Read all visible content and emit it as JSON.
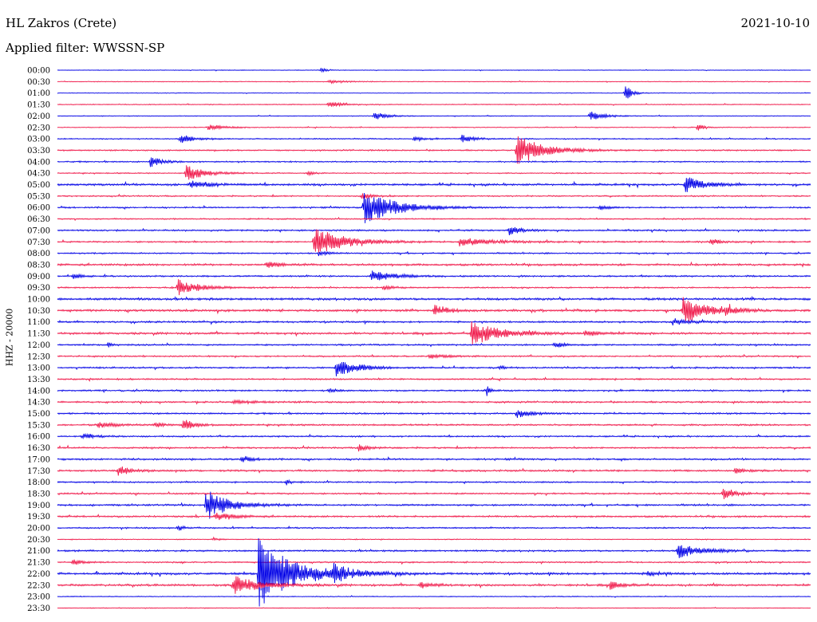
{
  "header": {
    "station": "HL Zakros (Crete)",
    "date": "2021-10-10",
    "filter": "Applied filter: WWSSN-SP"
  },
  "chart_data": {
    "type": "line",
    "title": "HL Zakros (Crete)",
    "subtitle": "Applied filter: WWSSN-SP",
    "ylabel": "HHZ - 20000",
    "xlabel": "",
    "grid": false,
    "colors": {
      "even": "#0000e6",
      "odd": "#f0194a"
    },
    "rows": [
      "00:00",
      "00:30",
      "01:00",
      "01:30",
      "02:00",
      "02:30",
      "03:00",
      "03:30",
      "04:00",
      "04:30",
      "05:00",
      "05:30",
      "06:00",
      "06:30",
      "07:00",
      "07:30",
      "08:00",
      "08:30",
      "09:00",
      "09:30",
      "10:00",
      "10:30",
      "11:00",
      "11:30",
      "12:00",
      "12:30",
      "13:00",
      "13:30",
      "14:00",
      "14:30",
      "15:00",
      "15:30",
      "16:00",
      "16:30",
      "17:00",
      "17:30",
      "18:00",
      "18:30",
      "19:00",
      "19:30",
      "20:00",
      "20:30",
      "21:00",
      "21:30",
      "22:00",
      "22:30",
      "23:00",
      "23:30"
    ],
    "noise": [
      0.4,
      0.5,
      0.4,
      0.6,
      0.5,
      0.6,
      0.8,
      1.0,
      0.9,
      0.8,
      1.4,
      0.9,
      1.0,
      0.9,
      1.1,
      1.1,
      1.0,
      1.4,
      1.1,
      1.0,
      1.6,
      1.5,
      1.2,
      1.4,
      1.1,
      1.0,
      1.1,
      1.1,
      1.1,
      1.2,
      1.1,
      1.2,
      1.0,
      1.1,
      1.2,
      1.3,
      1.0,
      1.1,
      1.2,
      1.2,
      1.0,
      0.6,
      1.2,
      1.0,
      1.5,
      1.4,
      0.6,
      0.5
    ],
    "events": [
      {
        "row": 0,
        "t": 10.5,
        "amp": 3,
        "dur": 0.4
      },
      {
        "row": 1,
        "t": 10.8,
        "amp": 2,
        "dur": 1
      },
      {
        "row": 2,
        "t": 22.6,
        "amp": 12,
        "dur": 0.4
      },
      {
        "row": 3,
        "t": 10.8,
        "amp": 4,
        "dur": 0.8
      },
      {
        "row": 4,
        "t": 12.6,
        "amp": 5,
        "dur": 0.8
      },
      {
        "row": 4,
        "t": 21.2,
        "amp": 6,
        "dur": 0.9
      },
      {
        "row": 5,
        "t": 6.0,
        "amp": 4,
        "dur": 1.0
      },
      {
        "row": 5,
        "t": 25.5,
        "amp": 6,
        "dur": 0.3
      },
      {
        "row": 6,
        "t": 4.9,
        "amp": 6,
        "dur": 0.8
      },
      {
        "row": 6,
        "t": 16.1,
        "amp": 5,
        "dur": 0.7
      },
      {
        "row": 6,
        "t": 14.2,
        "amp": 3,
        "dur": 0.6
      },
      {
        "row": 7,
        "t": 18.3,
        "amp": 20,
        "dur": 1.6
      },
      {
        "row": 8,
        "t": 3.7,
        "amp": 8,
        "dur": 0.6
      },
      {
        "row": 9,
        "t": 5.1,
        "amp": 11,
        "dur": 1.1
      },
      {
        "row": 9,
        "t": 10.0,
        "amp": 4,
        "dur": 0.3
      },
      {
        "row": 10,
        "t": 5.3,
        "amp": 6,
        "dur": 1.0
      },
      {
        "row": 10,
        "t": 25.0,
        "amp": 12,
        "dur": 1.0
      },
      {
        "row": 11,
        "t": 12.1,
        "amp": 4,
        "dur": 0.7
      },
      {
        "row": 12,
        "t": 12.2,
        "amp": 22,
        "dur": 2.0
      },
      {
        "row": 12,
        "t": 21.6,
        "amp": 4,
        "dur": 0.5
      },
      {
        "row": 14,
        "t": 18.0,
        "amp": 6,
        "dur": 0.8
      },
      {
        "row": 15,
        "t": 10.2,
        "amp": 20,
        "dur": 1.8
      },
      {
        "row": 15,
        "t": 16.0,
        "amp": 5,
        "dur": 2.0
      },
      {
        "row": 15,
        "t": 26.0,
        "amp": 5,
        "dur": 0.5
      },
      {
        "row": 16,
        "t": 10.4,
        "amp": 3,
        "dur": 0.6
      },
      {
        "row": 17,
        "t": 8.3,
        "amp": 4,
        "dur": 0.9
      },
      {
        "row": 18,
        "t": 12.5,
        "amp": 9,
        "dur": 1.2
      },
      {
        "row": 18,
        "t": 0.6,
        "amp": 4,
        "dur": 0.5
      },
      {
        "row": 19,
        "t": 4.8,
        "amp": 10,
        "dur": 1.3
      },
      {
        "row": 19,
        "t": 13.0,
        "amp": 3,
        "dur": 0.6
      },
      {
        "row": 21,
        "t": 15.0,
        "amp": 7,
        "dur": 0.8
      },
      {
        "row": 21,
        "t": 24.9,
        "amp": 18,
        "dur": 1.4
      },
      {
        "row": 21,
        "t": 26.6,
        "amp": 4,
        "dur": 0.8
      },
      {
        "row": 22,
        "t": 24.5,
        "amp": 4,
        "dur": 1.0
      },
      {
        "row": 23,
        "t": 16.5,
        "amp": 15,
        "dur": 1.8
      },
      {
        "row": 23,
        "t": 21.0,
        "amp": 3,
        "dur": 1.0
      },
      {
        "row": 24,
        "t": 2.0,
        "amp": 3,
        "dur": 0.4
      },
      {
        "row": 24,
        "t": 19.8,
        "amp": 5,
        "dur": 0.5
      },
      {
        "row": 25,
        "t": 14.8,
        "amp": 3,
        "dur": 1.0
      },
      {
        "row": 26,
        "t": 11.1,
        "amp": 12,
        "dur": 1.3
      },
      {
        "row": 26,
        "t": 17.6,
        "amp": 3,
        "dur": 0.3
      },
      {
        "row": 28,
        "t": 17.1,
        "amp": 8,
        "dur": 0.2
      },
      {
        "row": 28,
        "t": 10.8,
        "amp": 3,
        "dur": 0.5
      },
      {
        "row": 29,
        "t": 7.0,
        "amp": 2,
        "dur": 1.5
      },
      {
        "row": 30,
        "t": 18.3,
        "amp": 6,
        "dur": 0.9
      },
      {
        "row": 31,
        "t": 1.6,
        "amp": 4,
        "dur": 1.0
      },
      {
        "row": 31,
        "t": 5.0,
        "amp": 9,
        "dur": 0.6
      },
      {
        "row": 31,
        "t": 3.9,
        "amp": 4,
        "dur": 0.5
      },
      {
        "row": 32,
        "t": 1.0,
        "amp": 3,
        "dur": 1.0
      },
      {
        "row": 33,
        "t": 12.0,
        "amp": 4,
        "dur": 0.6
      },
      {
        "row": 34,
        "t": 7.3,
        "amp": 4,
        "dur": 0.6
      },
      {
        "row": 35,
        "t": 2.4,
        "amp": 7,
        "dur": 0.7
      },
      {
        "row": 35,
        "t": 27.0,
        "amp": 5,
        "dur": 0.5
      },
      {
        "row": 36,
        "t": 9.1,
        "amp": 4,
        "dur": 0.3
      },
      {
        "row": 37,
        "t": 26.5,
        "amp": 7,
        "dur": 0.7
      },
      {
        "row": 38,
        "t": 5.9,
        "amp": 20,
        "dur": 1.4
      },
      {
        "row": 39,
        "t": 6.3,
        "amp": 5,
        "dur": 1.0
      },
      {
        "row": 40,
        "t": 4.8,
        "amp": 5,
        "dur": 0.3
      },
      {
        "row": 41,
        "t": 6.2,
        "amp": 3,
        "dur": 0.3
      },
      {
        "row": 42,
        "t": 24.7,
        "amp": 10,
        "dur": 1.4
      },
      {
        "row": 43,
        "t": 0.6,
        "amp": 4,
        "dur": 0.5
      },
      {
        "row": 44,
        "t": 8.0,
        "amp": 45,
        "dur": 2.2
      },
      {
        "row": 44,
        "t": 11.0,
        "amp": 8,
        "dur": 1.2
      },
      {
        "row": 44,
        "t": 23.5,
        "amp": 3,
        "dur": 0.8
      },
      {
        "row": 45,
        "t": 7.0,
        "amp": 12,
        "dur": 1.6
      },
      {
        "row": 45,
        "t": 14.4,
        "amp": 4,
        "dur": 0.8
      },
      {
        "row": 45,
        "t": 22.0,
        "amp": 5,
        "dur": 0.7
      }
    ]
  }
}
